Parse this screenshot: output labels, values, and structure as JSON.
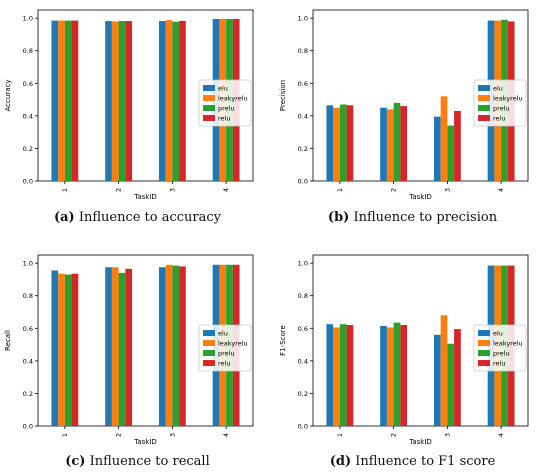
{
  "colors": {
    "elu": "#1f77b4",
    "leakyrelu": "#ff7f0e",
    "prelu": "#2ca02c",
    "relu": "#d62728"
  },
  "chart_data": [
    {
      "type": "bar",
      "categories": [
        "1",
        "2",
        "3",
        "4"
      ],
      "series": [
        {
          "name": "elu",
          "values": [
            0.985,
            0.982,
            0.982,
            0.995
          ]
        },
        {
          "name": "leakyrelu",
          "values": [
            0.985,
            0.98,
            0.988,
            0.995
          ]
        },
        {
          "name": "prelu",
          "values": [
            0.985,
            0.982,
            0.978,
            0.995
          ]
        },
        {
          "name": "relu",
          "values": [
            0.985,
            0.982,
            0.983,
            0.995
          ]
        }
      ],
      "xlabel": "TaskID",
      "ylabel": "Accuracy",
      "ylim": [
        0,
        1.05
      ],
      "yticks": [
        "0.0",
        "0.2",
        "0.4",
        "0.6",
        "0.8",
        "1.0"
      ],
      "legend": "right",
      "caption_label": "(a)",
      "caption_text": " Influence to accuracy"
    },
    {
      "type": "bar",
      "categories": [
        "1",
        "2",
        "3",
        "4"
      ],
      "series": [
        {
          "name": "elu",
          "values": [
            0.465,
            0.45,
            0.395,
            0.985
          ]
        },
        {
          "name": "leakyrelu",
          "values": [
            0.45,
            0.44,
            0.52,
            0.985
          ]
        },
        {
          "name": "prelu",
          "values": [
            0.47,
            0.48,
            0.34,
            0.99
          ]
        },
        {
          "name": "relu",
          "values": [
            0.465,
            0.46,
            0.43,
            0.98
          ]
        }
      ],
      "xlabel": "TaskID",
      "ylabel": "Precision",
      "ylim": [
        0,
        1.05
      ],
      "yticks": [
        "0.0",
        "0.2",
        "0.4",
        "0.6",
        "0.8",
        "1.0"
      ],
      "legend": "right",
      "caption_label": "(b)",
      "caption_text": " Influence to precision"
    },
    {
      "type": "bar",
      "categories": [
        "1",
        "2",
        "3",
        "4"
      ],
      "series": [
        {
          "name": "elu",
          "values": [
            0.955,
            0.975,
            0.975,
            0.99
          ]
        },
        {
          "name": "leakyrelu",
          "values": [
            0.935,
            0.975,
            0.99,
            0.99
          ]
        },
        {
          "name": "prelu",
          "values": [
            0.93,
            0.94,
            0.985,
            0.99
          ]
        },
        {
          "name": "relu",
          "values": [
            0.935,
            0.965,
            0.98,
            0.99
          ]
        }
      ],
      "xlabel": "TaskID",
      "ylabel": "Recall",
      "ylim": [
        0,
        1.05
      ],
      "yticks": [
        "0.0",
        "0.2",
        "0.4",
        "0.6",
        "0.8",
        "1.0"
      ],
      "legend": "right",
      "caption_label": "(c)",
      "caption_text": " Influence to recall"
    },
    {
      "type": "bar",
      "categories": [
        "1",
        "2",
        "3",
        "4"
      ],
      "series": [
        {
          "name": "elu",
          "values": [
            0.625,
            0.615,
            0.56,
            0.985
          ]
        },
        {
          "name": "leakyrelu",
          "values": [
            0.605,
            0.605,
            0.68,
            0.985
          ]
        },
        {
          "name": "prelu",
          "values": [
            0.625,
            0.635,
            0.505,
            0.985
          ]
        },
        {
          "name": "relu",
          "values": [
            0.62,
            0.62,
            0.595,
            0.985
          ]
        }
      ],
      "xlabel": "TaskID",
      "ylabel": "F1-Score",
      "ylim": [
        0,
        1.05
      ],
      "yticks": [
        "0.0",
        "0.2",
        "0.4",
        "0.6",
        "0.8",
        "1.0"
      ],
      "legend": "right",
      "caption_label": "(d)",
      "caption_text": " Influence to F1 score"
    }
  ]
}
